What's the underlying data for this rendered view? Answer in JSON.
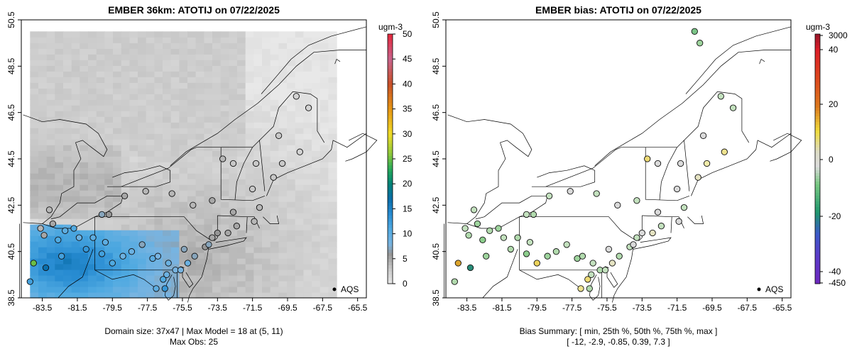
{
  "chart_data": [
    {
      "type": "heatmap",
      "title": "EMBER 36km: ATOTIJ on 07/22/2025",
      "xlabel": "",
      "ylabel": "",
      "xlim": [
        -84.7,
        -65.0
      ],
      "ylim": [
        38.5,
        50.5
      ],
      "x_ticks": [
        -83.5,
        -81.5,
        -79.5,
        -77.5,
        -75.5,
        -73.5,
        -71.5,
        -69.5,
        -67.5,
        -65.5
      ],
      "x_tick_labels": [
        "-83.5",
        "-81.5",
        "-79.5",
        "-77.5",
        "-75.5",
        "-73.5",
        "-71.5",
        "-69.5",
        "-67.5",
        "-65.5"
      ],
      "y_ticks": [
        38.5,
        40.5,
        42.5,
        44.5,
        46.5,
        48.5,
        50.5
      ],
      "y_tick_labels": [
        "38.5",
        "40.5",
        "42.5",
        "44.5",
        "46.5",
        "48.5",
        "50.5"
      ],
      "colorbar": {
        "unit": "ugm-3",
        "range": [
          0,
          50
        ],
        "ticks": [
          0,
          5,
          10,
          15,
          20,
          25,
          30,
          35,
          40,
          45,
          50
        ],
        "tick_labels": [
          "0",
          "5",
          "10",
          "15",
          "20",
          "25",
          "30",
          "35",
          "40",
          "45",
          "50"
        ]
      },
      "legend": {
        "label": "AQS",
        "position": "bottom-right"
      },
      "domain_size": "37x47",
      "max_model": 18,
      "max_model_at": "(5, 11)",
      "max_obs": 25,
      "footer": [
        "Domain size: 37x47 | Max Model = 18 at (5, 11)",
        "Max Obs: 25"
      ],
      "observations": [
        {
          "lon": -83.6,
          "lat": 41.5,
          "value": 4
        },
        {
          "lon": -83.4,
          "lat": 41.2,
          "value": 5
        },
        {
          "lon": -83.1,
          "lat": 42.3,
          "value": 4
        },
        {
          "lon": -82.9,
          "lat": 41.7,
          "value": 5
        },
        {
          "lon": -82.6,
          "lat": 41.0,
          "value": 11
        },
        {
          "lon": -82.4,
          "lat": 40.3,
          "value": 12
        },
        {
          "lon": -82.2,
          "lat": 41.4,
          "value": 10
        },
        {
          "lon": -81.7,
          "lat": 41.5,
          "value": 11
        },
        {
          "lon": -81.4,
          "lat": 41.1,
          "value": 9
        },
        {
          "lon": -81.0,
          "lat": 40.6,
          "value": 13
        },
        {
          "lon": -80.6,
          "lat": 41.1,
          "value": 10
        },
        {
          "lon": -80.1,
          "lat": 40.4,
          "value": 12
        },
        {
          "lon": -79.9,
          "lat": 40.9,
          "value": 10
        },
        {
          "lon": -79.5,
          "lat": 40.0,
          "value": 11
        },
        {
          "lon": -78.9,
          "lat": 40.3,
          "value": 9
        },
        {
          "lon": -78.4,
          "lat": 40.5,
          "value": 9
        },
        {
          "lon": -77.8,
          "lat": 40.8,
          "value": 7
        },
        {
          "lon": -77.2,
          "lat": 40.2,
          "value": 10
        },
        {
          "lon": -76.9,
          "lat": 40.3,
          "value": 8
        },
        {
          "lon": -76.6,
          "lat": 39.3,
          "value": 11
        },
        {
          "lon": -76.3,
          "lat": 40.0,
          "value": 9
        },
        {
          "lon": -75.9,
          "lat": 39.7,
          "value": 8
        },
        {
          "lon": -75.6,
          "lat": 39.7,
          "value": 8
        },
        {
          "lon": -75.2,
          "lat": 40.0,
          "value": 9
        },
        {
          "lon": -75.4,
          "lat": 40.6,
          "value": 7
        },
        {
          "lon": -74.8,
          "lat": 40.3,
          "value": 7
        },
        {
          "lon": -74.2,
          "lat": 40.7,
          "value": 6
        },
        {
          "lon": -74.0,
          "lat": 40.8,
          "value": 7
        },
        {
          "lon": -73.8,
          "lat": 41.1,
          "value": 5
        },
        {
          "lon": -73.5,
          "lat": 41.3,
          "value": 6
        },
        {
          "lon": -72.9,
          "lat": 41.3,
          "value": 5
        },
        {
          "lon": -72.4,
          "lat": 41.6,
          "value": 5
        },
        {
          "lon": -71.4,
          "lat": 41.8,
          "value": 4
        },
        {
          "lon": -71.1,
          "lat": 42.4,
          "value": 4
        },
        {
          "lon": -72.6,
          "lat": 42.2,
          "value": 5
        },
        {
          "lon": -73.8,
          "lat": 42.7,
          "value": 5
        },
        {
          "lon": -74.9,
          "lat": 42.5,
          "value": 4
        },
        {
          "lon": -76.1,
          "lat": 43.0,
          "value": 4
        },
        {
          "lon": -77.6,
          "lat": 43.1,
          "value": 4
        },
        {
          "lon": -78.8,
          "lat": 42.9,
          "value": 5
        },
        {
          "lon": -79.7,
          "lat": 42.1,
          "value": 6
        },
        {
          "lon": -80.1,
          "lat": 42.1,
          "value": 7
        },
        {
          "lon": -71.5,
          "lat": 43.2,
          "value": 3
        },
        {
          "lon": -70.3,
          "lat": 43.7,
          "value": 3
        },
        {
          "lon": -69.8,
          "lat": 44.3,
          "value": 3
        },
        {
          "lon": -68.8,
          "lat": 44.8,
          "value": 2
        },
        {
          "lon": -68.3,
          "lat": 46.7,
          "value": 2
        },
        {
          "lon": -72.6,
          "lat": 44.3,
          "value": 3
        },
        {
          "lon": -73.2,
          "lat": 44.5,
          "value": 4
        },
        {
          "lon": -71.3,
          "lat": 44.3,
          "value": 3
        },
        {
          "lon": -76.5,
          "lat": 38.9,
          "value": 13
        },
        {
          "lon": -77.0,
          "lat": 38.9,
          "value": 10
        },
        {
          "lon": -76.4,
          "lat": 39.5,
          "value": 9
        },
        {
          "lon": -83.3,
          "lat": 39.8,
          "value": 17
        },
        {
          "lon": -84.0,
          "lat": 40.0,
          "value": 25
        },
        {
          "lon": -84.2,
          "lat": 39.2,
          "value": 12
        },
        {
          "lon": -69.0,
          "lat": 47.2,
          "value": 2
        },
        {
          "lon": -70.0,
          "lat": 45.5,
          "value": 3
        }
      ]
    },
    {
      "type": "scatter",
      "title": "EMBER bias: ATOTIJ on 07/22/2025",
      "xlabel": "",
      "ylabel": "",
      "xlim": [
        -84.7,
        -65.0
      ],
      "ylim": [
        38.5,
        50.5
      ],
      "x_ticks": [
        -83.5,
        -81.5,
        -79.5,
        -77.5,
        -75.5,
        -73.5,
        -71.5,
        -69.5,
        -67.5,
        -65.5
      ],
      "x_tick_labels": [
        "-83.5",
        "-81.5",
        "-79.5",
        "-77.5",
        "-75.5",
        "-73.5",
        "-71.5",
        "-69.5",
        "-67.5",
        "-65.5"
      ],
      "y_ticks": [
        38.5,
        40.5,
        42.5,
        44.5,
        46.5,
        48.5,
        50.5
      ],
      "y_tick_labels": [
        "38.5",
        "40.5",
        "42.5",
        "44.5",
        "46.5",
        "48.5",
        "50.5"
      ],
      "colorbar": {
        "unit": "ugm-3",
        "ticks": [
          -450,
          -40,
          -20,
          0,
          20,
          40,
          3000
        ],
        "tick_labels": [
          "-450",
          "-40",
          "-20",
          "0",
          "20",
          "40",
          "3000"
        ]
      },
      "legend": {
        "label": "AQS",
        "position": "bottom-right"
      },
      "bias_summary": {
        "min": -12,
        "p25": -2.9,
        "p50": -0.85,
        "p75": 0.39,
        "max": 7.3
      },
      "footer": [
        "Bias Summary: [ min, 25th %, 50th %, 75th %, max ]",
        "[ -12,   -2.9,   -0.85,   0.39,   7.3 ]"
      ],
      "observations": [
        {
          "lon": -83.6,
          "lat": 41.5,
          "value": -1
        },
        {
          "lon": -83.4,
          "lat": 41.2,
          "value": -2
        },
        {
          "lon": -83.1,
          "lat": 42.3,
          "value": -1
        },
        {
          "lon": -82.9,
          "lat": 41.7,
          "value": -3
        },
        {
          "lon": -82.6,
          "lat": 41.0,
          "value": -4
        },
        {
          "lon": -82.4,
          "lat": 40.3,
          "value": -3
        },
        {
          "lon": -82.2,
          "lat": 41.4,
          "value": -2
        },
        {
          "lon": -81.7,
          "lat": 41.5,
          "value": -3
        },
        {
          "lon": -81.4,
          "lat": 41.1,
          "value": -1
        },
        {
          "lon": -81.0,
          "lat": 40.6,
          "value": -2
        },
        {
          "lon": -80.6,
          "lat": 41.1,
          "value": -2
        },
        {
          "lon": -80.1,
          "lat": 40.4,
          "value": -4
        },
        {
          "lon": -79.9,
          "lat": 40.9,
          "value": -1
        },
        {
          "lon": -79.5,
          "lat": 40.0,
          "value": 5
        },
        {
          "lon": -78.9,
          "lat": 40.3,
          "value": -3
        },
        {
          "lon": -78.4,
          "lat": 40.5,
          "value": -2
        },
        {
          "lon": -77.8,
          "lat": 40.8,
          "value": -1
        },
        {
          "lon": -77.2,
          "lat": 40.2,
          "value": -3
        },
        {
          "lon": -76.9,
          "lat": 40.3,
          "value": -2
        },
        {
          "lon": -76.6,
          "lat": 39.3,
          "value": 4
        },
        {
          "lon": -76.3,
          "lat": 40.0,
          "value": -1
        },
        {
          "lon": -75.9,
          "lat": 39.7,
          "value": -2
        },
        {
          "lon": -75.6,
          "lat": 39.7,
          "value": -1
        },
        {
          "lon": -75.2,
          "lat": 40.0,
          "value": 1
        },
        {
          "lon": -75.4,
          "lat": 40.6,
          "value": 0
        },
        {
          "lon": -74.8,
          "lat": 40.3,
          "value": -2
        },
        {
          "lon": -74.2,
          "lat": 40.7,
          "value": -1
        },
        {
          "lon": -74.0,
          "lat": 40.8,
          "value": 0
        },
        {
          "lon": -73.8,
          "lat": 41.1,
          "value": -1
        },
        {
          "lon": -73.5,
          "lat": 41.3,
          "value": 0
        },
        {
          "lon": -72.9,
          "lat": 41.3,
          "value": 1
        },
        {
          "lon": -72.4,
          "lat": 41.6,
          "value": -1
        },
        {
          "lon": -71.4,
          "lat": 41.8,
          "value": 0
        },
        {
          "lon": -71.1,
          "lat": 42.4,
          "value": -1
        },
        {
          "lon": -72.6,
          "lat": 42.2,
          "value": 0
        },
        {
          "lon": -73.8,
          "lat": 42.7,
          "value": -1
        },
        {
          "lon": -74.9,
          "lat": 42.5,
          "value": 0
        },
        {
          "lon": -76.1,
          "lat": 43.0,
          "value": -1
        },
        {
          "lon": -77.6,
          "lat": 43.1,
          "value": 0
        },
        {
          "lon": -78.8,
          "lat": 42.9,
          "value": -1
        },
        {
          "lon": -79.7,
          "lat": 42.1,
          "value": -2
        },
        {
          "lon": -80.1,
          "lat": 42.1,
          "value": -1
        },
        {
          "lon": -71.5,
          "lat": 43.2,
          "value": 0
        },
        {
          "lon": -70.3,
          "lat": 43.7,
          "value": 1
        },
        {
          "lon": -69.8,
          "lat": 44.3,
          "value": 2
        },
        {
          "lon": -68.8,
          "lat": 44.8,
          "value": 3
        },
        {
          "lon": -68.3,
          "lat": 46.7,
          "value": -1
        },
        {
          "lon": -72.6,
          "lat": 44.3,
          "value": 0
        },
        {
          "lon": -73.2,
          "lat": 44.5,
          "value": 4
        },
        {
          "lon": -71.3,
          "lat": 44.3,
          "value": 0
        },
        {
          "lon": -76.5,
          "lat": 38.9,
          "value": -2
        },
        {
          "lon": -77.0,
          "lat": 38.9,
          "value": 3
        },
        {
          "lon": -76.4,
          "lat": 39.5,
          "value": -1
        },
        {
          "lon": -83.3,
          "lat": 39.8,
          "value": -12
        },
        {
          "lon": -84.0,
          "lat": 40.0,
          "value": 7.3
        },
        {
          "lon": -84.2,
          "lat": 39.2,
          "value": -2
        },
        {
          "lon": -69.0,
          "lat": 47.2,
          "value": -1
        },
        {
          "lon": -70.0,
          "lat": 45.5,
          "value": 0
        },
        {
          "lon": -70.5,
          "lat": 50.0,
          "value": -5
        },
        {
          "lon": -70.2,
          "lat": 49.5,
          "value": -3
        }
      ]
    }
  ]
}
